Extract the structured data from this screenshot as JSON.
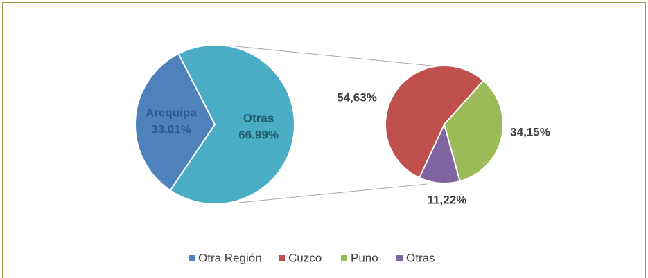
{
  "chart_data": [
    {
      "type": "pie",
      "categories": [
        "Arequipa",
        "Otras"
      ],
      "values": [
        33.01,
        66.99
      ],
      "value_labels": [
        "33.01%",
        "66.99%"
      ],
      "colors": [
        "#4f81bd",
        "#4bacc6"
      ]
    },
    {
      "type": "pie",
      "values": [
        54.63,
        34.15,
        11.22
      ],
      "value_labels": [
        "54,63%",
        "34,15%",
        "11,22%"
      ],
      "colors": [
        "#c0504d",
        "#9bbb59",
        "#8064a2"
      ]
    }
  ],
  "legend": {
    "names": [
      "Otra Región",
      "Cuzco",
      "Puno",
      "Otras"
    ],
    "colors": [
      "#4f81bd",
      "#c0504d",
      "#9bbb59",
      "#8064a2"
    ]
  }
}
